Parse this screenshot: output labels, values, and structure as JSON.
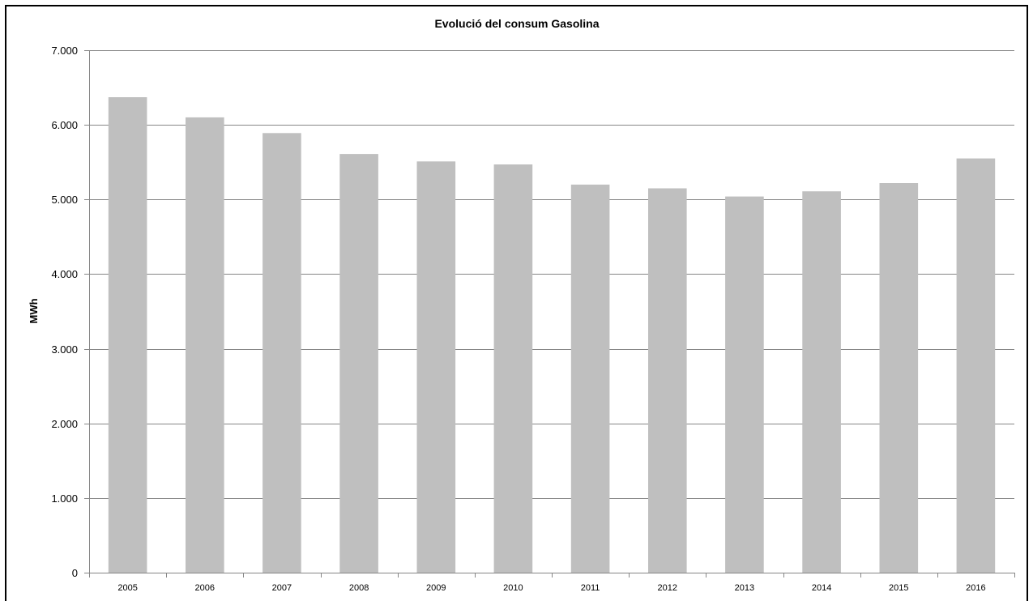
{
  "chart_data": {
    "type": "bar",
    "title": "Evolució del consum  Gasolina",
    "xlabel": "",
    "ylabel": "MWh",
    "categories": [
      "2005",
      "2006",
      "2007",
      "2008",
      "2009",
      "2010",
      "2011",
      "2012",
      "2013",
      "2014",
      "2015",
      "2016"
    ],
    "values": [
      6370,
      6100,
      5890,
      5610,
      5510,
      5470,
      5200,
      5150,
      5040,
      5110,
      5220,
      5550
    ],
    "ylim": [
      0,
      7000
    ],
    "yticks": [
      0,
      1000,
      2000,
      3000,
      4000,
      5000,
      6000,
      7000
    ],
    "ytick_labels": [
      "0",
      "1.000",
      "2.000",
      "3.000",
      "4.000",
      "5.000",
      "6.000",
      "7.000"
    ],
    "grid": true,
    "legend": "none",
    "colors": {
      "bar": "#bfbfbf",
      "grid": "#868686",
      "axis": "#868686",
      "text": "#000000"
    }
  }
}
